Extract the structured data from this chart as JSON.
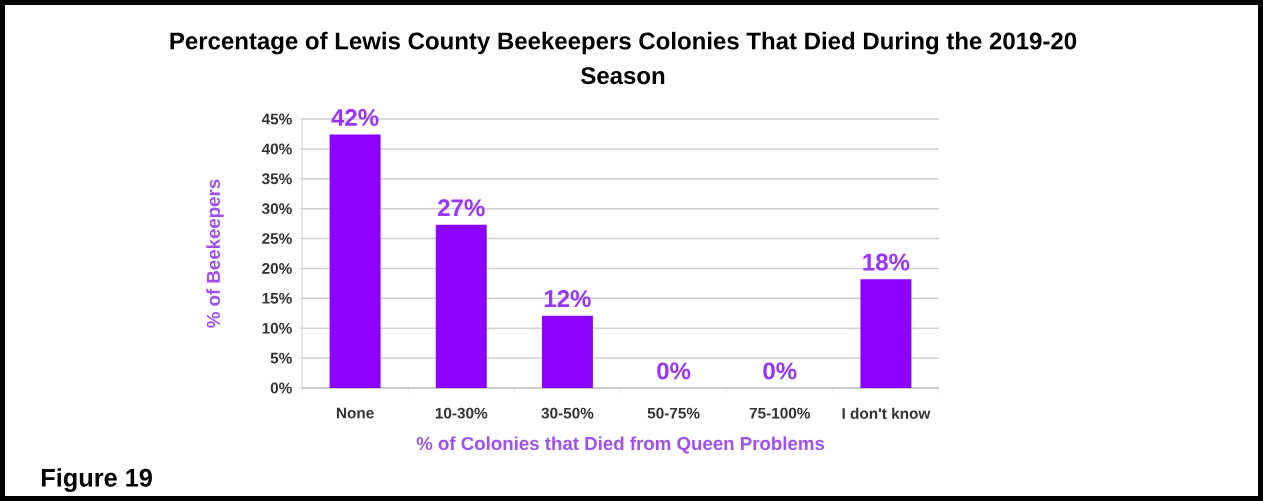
{
  "chart_data": {
    "type": "bar",
    "title": "Percentage of Lewis County Beekeepers Colonies That Died During the 2019-20 Season",
    "xlabel": "% of Colonies that Died from Queen Problems",
    "ylabel": "% of Beekeepers",
    "categories": [
      "None",
      "10-30%",
      "30-50%",
      "50-75%",
      "75-100%",
      "I don't know"
    ],
    "values": [
      42.4,
      27.3,
      12.1,
      0,
      0,
      18.2
    ],
    "value_labels": [
      "42%",
      "27%",
      "12%",
      "0%",
      "0%",
      "18%"
    ],
    "color": "#8b00ff",
    "ylim": [
      0,
      45
    ],
    "yticks": [
      {
        "value": 0,
        "label": "0%"
      },
      {
        "value": 5,
        "label": "5%"
      },
      {
        "value": 10,
        "label": "10%"
      },
      {
        "value": 15,
        "label": "15%"
      },
      {
        "value": 20,
        "label": "20%"
      },
      {
        "value": 25,
        "label": "25%"
      },
      {
        "value": 30,
        "label": "30%"
      },
      {
        "value": 35,
        "label": "35%"
      },
      {
        "value": 40,
        "label": "40%"
      },
      {
        "value": 45,
        "label": "45%"
      }
    ],
    "grid": "y",
    "annotations": [
      "Figure 19"
    ]
  }
}
